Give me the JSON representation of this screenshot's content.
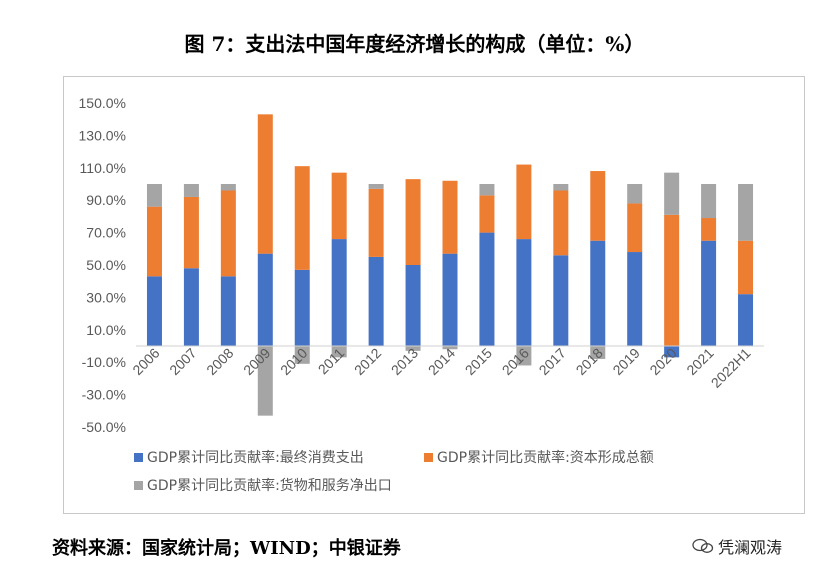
{
  "title": "图 7：支出法中国年度经济增长的构成（单位：%）",
  "source": "资料来源：国家统计局；WIND；中银证券",
  "watermark": "凭澜观涛",
  "colors": {
    "consumption": "#4472C4",
    "capital": "#ED7D31",
    "net_exports": "#A5A5A5"
  },
  "chart_data": {
    "type": "bar",
    "stacked": true,
    "categories": [
      "2006",
      "2007",
      "2008",
      "2009",
      "2010",
      "2011",
      "2012",
      "2013",
      "2014",
      "2015",
      "2016",
      "2017",
      "2018",
      "2019",
      "2020",
      "2021",
      "2022H1"
    ],
    "series": [
      {
        "name": "GDP累计同比贡献率:最终消费支出",
        "color": "#4472C4",
        "values": [
          43,
          48,
          43,
          57,
          47,
          66,
          55,
          50,
          57,
          70,
          66,
          56,
          65,
          58,
          -7,
          65,
          32
        ]
      },
      {
        "name": "GDP累计同比贡献率:资本形成总额",
        "color": "#ED7D31",
        "values": [
          43,
          44,
          53,
          86,
          64,
          41,
          42,
          53,
          45,
          23,
          46,
          40,
          43,
          30,
          81,
          14,
          33
        ]
      },
      {
        "name": "GDP累计同比贡献率:货物和服务净出口",
        "color": "#A5A5A5",
        "values": [
          14,
          8,
          4,
          -43,
          -11,
          -7,
          3,
          -3,
          -2,
          7,
          -12,
          4,
          -8,
          12,
          26,
          21,
          35
        ]
      }
    ],
    "yticks": [
      "150.0%",
      "130.0%",
      "110.0%",
      "90.0%",
      "70.0%",
      "50.0%",
      "30.0%",
      "10.0%",
      "-10.0%",
      "-30.0%",
      "-50.0%"
    ],
    "ylim": [
      -50,
      150
    ],
    "legend_position": "bottom"
  }
}
